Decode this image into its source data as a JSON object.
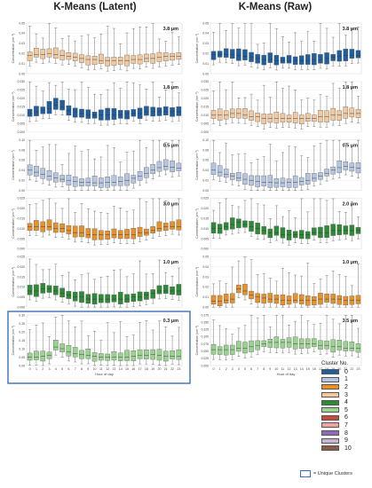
{
  "titles": {
    "left": "K-Means (Latent)",
    "right": "K-Means (Raw)"
  },
  "axis_text": {
    "ylabel": "Concentration (cm⁻³)",
    "xlabel": "Hour of day"
  },
  "legend": {
    "title": "Cluster No.",
    "items": [
      {
        "label": "0",
        "color": "#1f5fa0"
      },
      {
        "label": "1",
        "color": "#b4c6e4"
      },
      {
        "label": "2",
        "color": "#e8902a"
      },
      {
        "label": "3",
        "color": "#f5c79a"
      },
      {
        "label": "4",
        "color": "#2d8a35"
      },
      {
        "label": "5",
        "color": "#98d48e"
      },
      {
        "label": "6",
        "color": "#c84a3a"
      },
      {
        "label": "7",
        "color": "#f2a5a0"
      },
      {
        "label": "8",
        "color": "#8e6bb8"
      },
      {
        "label": "9",
        "color": "#c7b3d6"
      },
      {
        "label": "10",
        "color": "#8a5a44"
      }
    ],
    "unique_label": "= Unique Clusters"
  },
  "chart_data": [
    {
      "type": "box",
      "column": "K-Means (Latent)",
      "size_label": "3.8 μm",
      "cluster": 3,
      "color": "#f5c79a",
      "yticks": [
        "0.00",
        "0.01",
        "0.02",
        "0.03",
        "0.04",
        "0.05"
      ],
      "ylim": [
        0,
        0.05
      ],
      "x": [
        0,
        1,
        2,
        3,
        4,
        5,
        6,
        7,
        8,
        9,
        10,
        11,
        12,
        13,
        14,
        15,
        16,
        17,
        18,
        19,
        20,
        21,
        22,
        23
      ],
      "median": [
        0.018,
        0.019,
        0.019,
        0.02,
        0.019,
        0.018,
        0.017,
        0.016,
        0.015,
        0.014,
        0.014,
        0.013,
        0.013,
        0.013,
        0.013,
        0.013,
        0.014,
        0.014,
        0.015,
        0.015,
        0.016,
        0.017,
        0.017,
        0.017
      ]
    },
    {
      "type": "box",
      "column": "K-Means (Raw)",
      "size_label": "3.8 μm",
      "cluster": 0,
      "color": "#1f5fa0",
      "yticks": [
        "0.00",
        "0.01",
        "0.02",
        "0.03",
        "0.04",
        "0.05"
      ],
      "ylim": [
        0,
        0.05
      ],
      "x": [
        0,
        1,
        2,
        3,
        4,
        5,
        6,
        7,
        8,
        9,
        10,
        11,
        12,
        13,
        14,
        15,
        16,
        17,
        18,
        19,
        20,
        21,
        22,
        23
      ],
      "median": [
        0.019,
        0.019,
        0.019,
        0.019,
        0.018,
        0.017,
        0.016,
        0.015,
        0.014,
        0.014,
        0.013,
        0.013,
        0.013,
        0.013,
        0.013,
        0.013,
        0.014,
        0.014,
        0.015,
        0.016,
        0.017,
        0.018,
        0.018,
        0.018
      ]
    },
    {
      "type": "box",
      "column": "K-Means (Latent)",
      "size_label": "1.8 μm",
      "cluster": 0,
      "color": "#1f5fa0",
      "yticks": [
        "0.000",
        "0.005",
        "0.010",
        "0.015",
        "0.020",
        "0.025",
        "0.030"
      ],
      "ylim": [
        0,
        0.03
      ],
      "x": [
        0,
        1,
        2,
        3,
        4,
        5,
        6,
        7,
        8,
        9,
        10,
        11,
        12,
        13,
        14,
        15,
        16,
        17,
        18,
        19,
        20,
        21,
        22,
        23
      ],
      "median": [
        0.011,
        0.012,
        0.013,
        0.014,
        0.016,
        0.015,
        0.013,
        0.012,
        0.011,
        0.01,
        0.01,
        0.01,
        0.01,
        0.01,
        0.01,
        0.011,
        0.011,
        0.011,
        0.012,
        0.012,
        0.012,
        0.012,
        0.012,
        0.012
      ]
    },
    {
      "type": "box",
      "column": "K-Means (Raw)",
      "size_label": "1.8 μm",
      "cluster": 3,
      "color": "#f5c79a",
      "yticks": [
        "0.000",
        "0.005",
        "0.010",
        "0.015",
        "0.020",
        "0.025",
        "0.030"
      ],
      "ylim": [
        0,
        0.03
      ],
      "x": [
        0,
        1,
        2,
        3,
        4,
        5,
        6,
        7,
        8,
        9,
        10,
        11,
        12,
        13,
        14,
        15,
        16,
        17,
        18,
        19,
        20,
        21,
        22,
        23
      ],
      "median": [
        0.01,
        0.01,
        0.01,
        0.011,
        0.011,
        0.01,
        0.009,
        0.009,
        0.008,
        0.008,
        0.008,
        0.008,
        0.008,
        0.008,
        0.008,
        0.008,
        0.008,
        0.009,
        0.009,
        0.01,
        0.01,
        0.011,
        0.011,
        0.011
      ]
    },
    {
      "type": "box",
      "column": "K-Means (Latent)",
      "size_label": "0.5 μm",
      "cluster": 1,
      "color": "#b4c6e4",
      "yticks": [
        "0.00",
        "0.02",
        "0.04",
        "0.06",
        "0.08",
        "0.10"
      ],
      "ylim": [
        0,
        0.1
      ],
      "x": [
        0,
        1,
        2,
        3,
        4,
        5,
        6,
        7,
        8,
        9,
        10,
        11,
        12,
        13,
        14,
        15,
        16,
        17,
        18,
        19,
        20,
        21,
        22,
        23
      ],
      "median": [
        0.04,
        0.036,
        0.032,
        0.028,
        0.025,
        0.022,
        0.02,
        0.018,
        0.016,
        0.016,
        0.015,
        0.015,
        0.016,
        0.016,
        0.018,
        0.02,
        0.024,
        0.028,
        0.034,
        0.04,
        0.045,
        0.048,
        0.046,
        0.044
      ]
    },
    {
      "type": "box",
      "column": "K-Means (Raw)",
      "size_label": "0.5 μm",
      "cluster": 1,
      "color": "#b4c6e4",
      "yticks": [
        "0.00",
        "0.02",
        "0.04",
        "0.06",
        "0.08",
        "0.10"
      ],
      "ylim": [
        0,
        0.1
      ],
      "x": [
        0,
        1,
        2,
        3,
        4,
        5,
        6,
        7,
        8,
        9,
        10,
        11,
        12,
        13,
        14,
        15,
        16,
        17,
        18,
        19,
        20,
        21,
        22,
        23
      ],
      "median": [
        0.04,
        0.036,
        0.032,
        0.028,
        0.025,
        0.022,
        0.02,
        0.018,
        0.016,
        0.016,
        0.015,
        0.015,
        0.016,
        0.016,
        0.018,
        0.02,
        0.024,
        0.028,
        0.034,
        0.04,
        0.045,
        0.048,
        0.046,
        0.044
      ]
    },
    {
      "type": "box",
      "column": "K-Means (Latent)",
      "size_label": "3.0 μm",
      "cluster": 2,
      "color": "#e8902a",
      "yticks": [
        "0.000",
        "0.005",
        "0.010",
        "0.015",
        "0.020",
        "0.025"
      ],
      "ylim": [
        0,
        0.025
      ],
      "x": [
        0,
        1,
        2,
        3,
        4,
        5,
        6,
        7,
        8,
        9,
        10,
        11,
        12,
        13,
        14,
        15,
        16,
        17,
        18,
        19,
        20,
        21,
        22,
        23
      ],
      "median": [
        0.011,
        0.011,
        0.011,
        0.011,
        0.01,
        0.01,
        0.009,
        0.008,
        0.008,
        0.007,
        0.007,
        0.007,
        0.007,
        0.007,
        0.007,
        0.007,
        0.007,
        0.008,
        0.008,
        0.009,
        0.01,
        0.011,
        0.011,
        0.011
      ]
    },
    {
      "type": "box",
      "column": "K-Means (Raw)",
      "size_label": "2.0 μm",
      "cluster": 4,
      "color": "#2d8a35",
      "yticks": [
        "0.000",
        "0.005",
        "0.010",
        "0.015",
        "0.020",
        "0.025"
      ],
      "ylim": [
        0,
        0.025
      ],
      "x": [
        0,
        1,
        2,
        3,
        4,
        5,
        6,
        7,
        8,
        9,
        10,
        11,
        12,
        13,
        14,
        15,
        16,
        17,
        18,
        19,
        20,
        21,
        22,
        23
      ],
      "median": [
        0.01,
        0.01,
        0.011,
        0.012,
        0.013,
        0.012,
        0.011,
        0.01,
        0.009,
        0.008,
        0.008,
        0.007,
        0.007,
        0.007,
        0.007,
        0.007,
        0.008,
        0.008,
        0.008,
        0.009,
        0.009,
        0.009,
        0.009,
        0.009
      ]
    },
    {
      "type": "box",
      "column": "K-Means (Latent)",
      "size_label": "1.0 μm",
      "cluster": 4,
      "color": "#2d8a35",
      "yticks": [
        "0.000",
        "0.005",
        "0.010",
        "0.015",
        "0.020",
        "0.025"
      ],
      "ylim": [
        0,
        0.025
      ],
      "x": [
        0,
        1,
        2,
        3,
        4,
        5,
        6,
        7,
        8,
        9,
        10,
        11,
        12,
        13,
        14,
        15,
        16,
        17,
        18,
        19,
        20,
        21,
        22,
        23
      ],
      "median": [
        0.008,
        0.008,
        0.009,
        0.009,
        0.008,
        0.007,
        0.006,
        0.005,
        0.005,
        0.004,
        0.004,
        0.004,
        0.004,
        0.004,
        0.004,
        0.004,
        0.005,
        0.005,
        0.006,
        0.007,
        0.008,
        0.008,
        0.008,
        0.008
      ]
    },
    {
      "type": "box",
      "column": "K-Means (Raw)",
      "size_label": "1.0 μm",
      "cluster": 2,
      "color": "#e8902a",
      "yticks": [
        "0.00",
        "0.01",
        "0.02",
        "0.03",
        "0.04",
        "0.05"
      ],
      "ylim": [
        0,
        0.05
      ],
      "x": [
        0,
        1,
        2,
        3,
        4,
        5,
        6,
        7,
        8,
        9,
        10,
        11,
        12,
        13,
        14,
        15,
        16,
        17,
        18,
        19,
        20,
        21,
        22,
        23
      ],
      "median": [
        0.006,
        0.006,
        0.007,
        0.008,
        0.018,
        0.016,
        0.012,
        0.01,
        0.009,
        0.008,
        0.008,
        0.007,
        0.007,
        0.007,
        0.007,
        0.007,
        0.007,
        0.008,
        0.008,
        0.008,
        0.008,
        0.007,
        0.007,
        0.007
      ]
    },
    {
      "type": "box",
      "column": "K-Means (Latent)",
      "size_label": "0.3 μm",
      "cluster": 5,
      "color": "#98d48e",
      "unique": true,
      "yticks": [
        "0.00",
        "0.05",
        "0.10",
        "0.15",
        "0.20",
        "0.25",
        "0.30"
      ],
      "ylim": [
        0,
        0.3
      ],
      "xlabel": "Hour of day",
      "x": [
        0,
        1,
        2,
        3,
        4,
        5,
        6,
        7,
        8,
        9,
        10,
        11,
        12,
        13,
        14,
        15,
        16,
        17,
        18,
        19,
        20,
        21,
        22,
        23
      ],
      "median": [
        0.05,
        0.05,
        0.055,
        0.06,
        0.11,
        0.1,
        0.08,
        0.07,
        0.065,
        0.06,
        0.055,
        0.05,
        0.05,
        0.05,
        0.05,
        0.05,
        0.055,
        0.06,
        0.06,
        0.065,
        0.06,
        0.055,
        0.055,
        0.055
      ]
    },
    {
      "type": "box",
      "column": "K-Means (Raw)",
      "size_label": "3.5 μm",
      "cluster": 5,
      "color": "#98d48e",
      "yticks": [
        "0.000",
        "0.025",
        "0.050",
        "0.075",
        "0.100",
        "0.125",
        "0.150",
        "0.175"
      ],
      "ylim": [
        0,
        0.175
      ],
      "xlabel": "Hour of day",
      "x": [
        0,
        1,
        2,
        3,
        4,
        5,
        6,
        7,
        8,
        9,
        10,
        11,
        12,
        13,
        14,
        15,
        16,
        17,
        18,
        19,
        20,
        21,
        22,
        23
      ],
      "median": [
        0.055,
        0.055,
        0.055,
        0.055,
        0.06,
        0.06,
        0.065,
        0.07,
        0.075,
        0.08,
        0.08,
        0.08,
        0.08,
        0.075,
        0.075,
        0.075,
        0.075,
        0.07,
        0.07,
        0.065,
        0.065,
        0.06,
        0.06,
        0.06
      ]
    }
  ]
}
